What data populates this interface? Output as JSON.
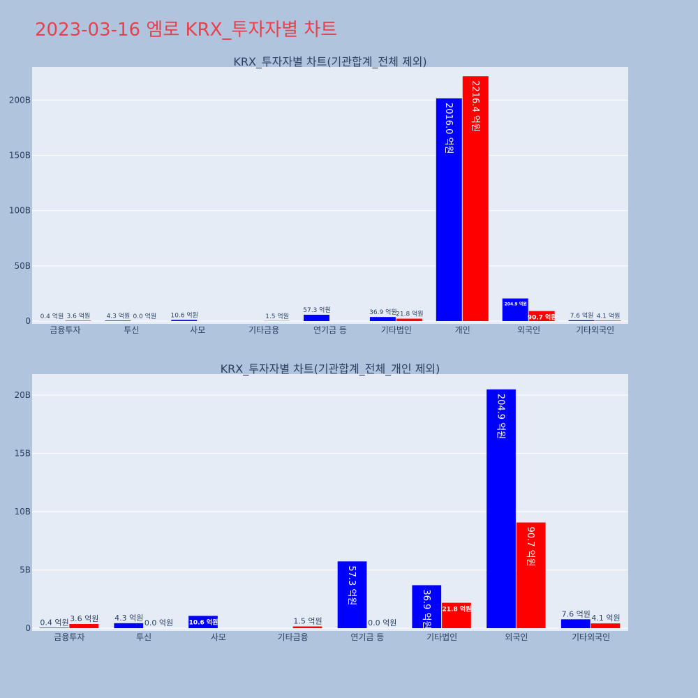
{
  "title": "2023-03-16 엠로 KRX_투자자별 차트",
  "colors": {
    "series_1": "#0000ff",
    "series_2": "#ff0000",
    "plot_bg": "#e5ecf6",
    "page_bg": "#b0c4de",
    "title": "#e8404f",
    "text": "#2a3f5f"
  },
  "chart_data": [
    {
      "type": "bar",
      "title": "KRX_투자자별 차트(기관합계_전체 제외)",
      "categories": [
        "금융투자",
        "투신",
        "사모",
        "기타금융",
        "연기금 등",
        "기타법인",
        "개인",
        "외국인",
        "기타외국인"
      ],
      "series": [
        {
          "color": "#0000ff",
          "values": [
            0.04,
            0.43,
            1.06,
            0,
            5.73,
            3.69,
            201.6,
            20.49,
            0.76
          ],
          "labels": [
            "0.4 억원",
            "4.3 억원",
            "10.6 억원",
            "",
            "57.3 억원",
            "36.9 억원",
            "2016.0 억원",
            "204.9 억원",
            "7.6 억원"
          ]
        },
        {
          "color": "#ff0000",
          "values": [
            0.36,
            0.0,
            0,
            0.15,
            0,
            2.18,
            221.64,
            9.07,
            0.41
          ],
          "labels": [
            "3.6 억원",
            "0.0 억원",
            "",
            "1.5 억원",
            "",
            "21.8 억원",
            "2216.4 억원",
            "90.7 억원",
            "4.1 억원"
          ]
        }
      ],
      "ylim": [
        0,
        230
      ],
      "yticks": [
        0,
        50,
        100,
        150,
        200
      ],
      "ytick_labels": [
        "0",
        "50B",
        "100B",
        "150B",
        "200B"
      ],
      "grid": true
    },
    {
      "type": "bar",
      "title": "KRX_투자자별 차트(기관합계_전체_개인 제외)",
      "categories": [
        "금융투자",
        "투신",
        "사모",
        "기타금융",
        "연기금 등",
        "기타법인",
        "외국인",
        "기타외국인"
      ],
      "series": [
        {
          "color": "#0000ff",
          "values": [
            0.04,
            0.43,
            1.06,
            0,
            5.73,
            3.69,
            20.49,
            0.76
          ],
          "labels": [
            "0.4 억원",
            "4.3 억원",
            "10.6 억원",
            "",
            "57.3 억원",
            "36.9 억원",
            "204.9 억원",
            "7.6 억원"
          ]
        },
        {
          "color": "#ff0000",
          "values": [
            0.36,
            0.0,
            0,
            0.15,
            0.0,
            2.18,
            9.07,
            0.41
          ],
          "labels": [
            "3.6 억원",
            "0.0 억원",
            "",
            "1.5 억원",
            "0.0 억원",
            "21.8 억원",
            "90.7 억원",
            "4.1 억원"
          ]
        }
      ],
      "ylim": [
        0,
        21.8
      ],
      "yticks": [
        0,
        5,
        10,
        15,
        20
      ],
      "ytick_labels": [
        "0",
        "5B",
        "10B",
        "15B",
        "20B"
      ],
      "grid": true
    }
  ]
}
